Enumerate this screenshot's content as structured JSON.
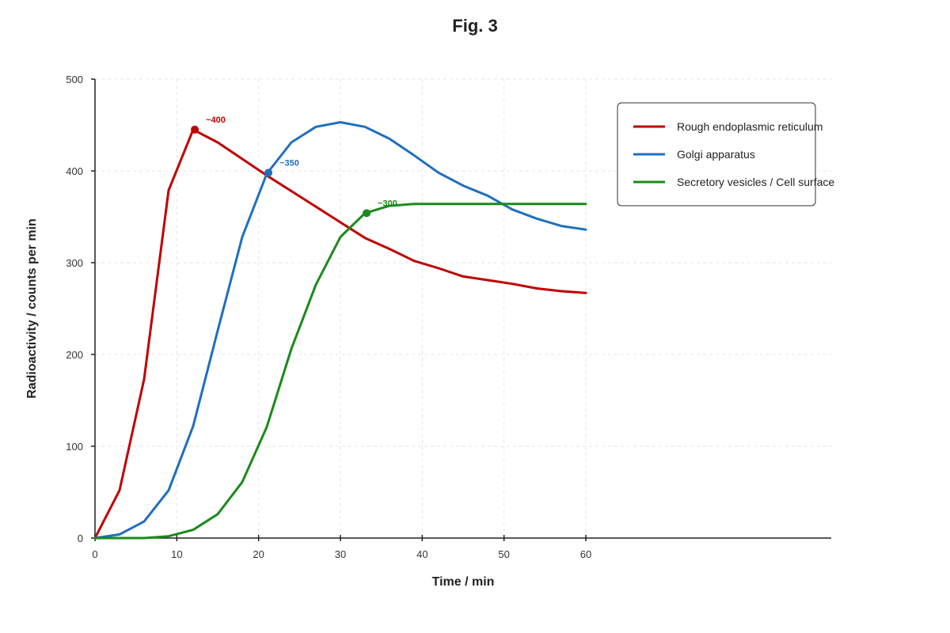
{
  "chart_data": {
    "type": "line",
    "title": "Fig. 3",
    "xlabel": "Time / min",
    "ylabel": "Radioactivity / counts per min",
    "xlim": [
      0,
      90
    ],
    "ylim": [
      0,
      500
    ],
    "x_ticks": [
      0,
      10,
      20,
      30,
      40,
      50,
      60
    ],
    "y_ticks": [
      0,
      100,
      200,
      300,
      400,
      500
    ],
    "x_tick_labels": [
      "0",
      "10",
      "20",
      "30",
      "40",
      "50",
      "60"
    ],
    "y_tick_labels": [
      "0",
      "100",
      "200",
      "300",
      "400",
      "500"
    ],
    "grid": true,
    "legend_position": "top-right",
    "series": [
      {
        "name": "Rough endoplasmic reticulum",
        "color": "#c00000",
        "x": [
          0,
          3,
          6,
          9,
          12,
          15,
          18,
          21,
          24,
          27,
          30,
          33,
          36,
          39,
          42,
          45,
          48,
          51,
          54,
          57,
          60
        ],
        "y": [
          0,
          52,
          173,
          379,
          445,
          431,
          413,
          395,
          378,
          361,
          344,
          327,
          315,
          302,
          294,
          285,
          281,
          277,
          272,
          269,
          267
        ]
      },
      {
        "name": "Golgi apparatus",
        "color": "#1f6fbf",
        "x": [
          0,
          3,
          6,
          9,
          12,
          15,
          18,
          21,
          24,
          27,
          30,
          33,
          36,
          39,
          42,
          45,
          48,
          51,
          54,
          57,
          60
        ],
        "y": [
          0,
          4,
          18,
          52,
          122,
          226,
          328,
          397,
          431,
          448,
          453,
          448,
          435,
          417,
          398,
          384,
          373,
          358,
          348,
          340,
          336
        ]
      },
      {
        "name": "Secretory vesicles / Cell surface",
        "color": "#1a8a1a",
        "x": [
          0,
          3,
          6,
          9,
          12,
          15,
          18,
          21,
          24,
          27,
          30,
          33,
          36,
          39,
          42,
          45,
          48,
          51,
          54,
          57,
          60
        ],
        "y": [
          0,
          0,
          0,
          2,
          9,
          26,
          61,
          121,
          206,
          276,
          328,
          354,
          362,
          364,
          364,
          364,
          364,
          364,
          364,
          364,
          364
        ]
      }
    ],
    "annotations": [
      {
        "text": "~400",
        "x": 12.2,
        "y": 445,
        "color": "#c00000"
      },
      {
        "text": "~350",
        "x": 21.2,
        "y": 398,
        "color": "#1f6fbf"
      },
      {
        "text": "~300",
        "x": 33.2,
        "y": 354,
        "color": "#1a8a1a"
      }
    ]
  }
}
